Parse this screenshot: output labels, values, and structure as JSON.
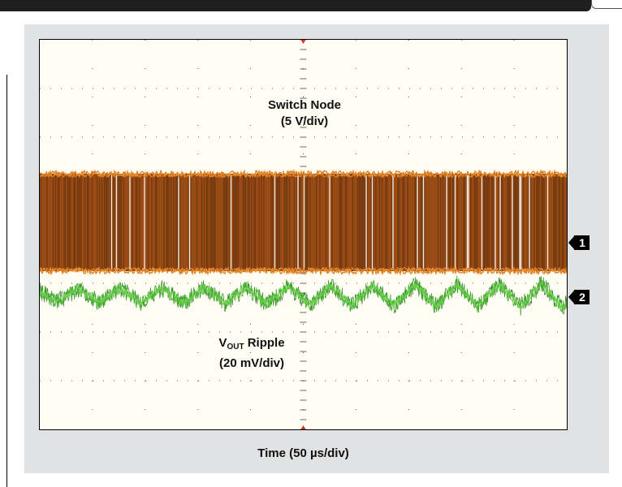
{
  "chart_data": {
    "type": "line",
    "title": "",
    "xlabel": "Time (50 µs/div)",
    "ylabel": "",
    "x_divisions": 10,
    "y_divisions": 8,
    "grid": true,
    "series": [
      {
        "name": "Switch Node",
        "scale": "(5 V/div)",
        "channel": "1",
        "color": "#e07c1c",
        "band_color": "#8a4413",
        "high_level_div": 5.25,
        "low_level_div": 3.25,
        "form": "rectangular switching waveform between low and high levels"
      },
      {
        "name_main": "V",
        "name_sub": "OUT",
        "name_rest": " Ripple",
        "scale": "(20 mV/div)",
        "channel": "2",
        "color": "#43b22e",
        "dark_color": "#2e8a1e",
        "center_div": 2.75,
        "ripple_peak_to_peak_div": 0.5,
        "ripple_periods_across_screen": 12.5
      }
    ]
  }
}
